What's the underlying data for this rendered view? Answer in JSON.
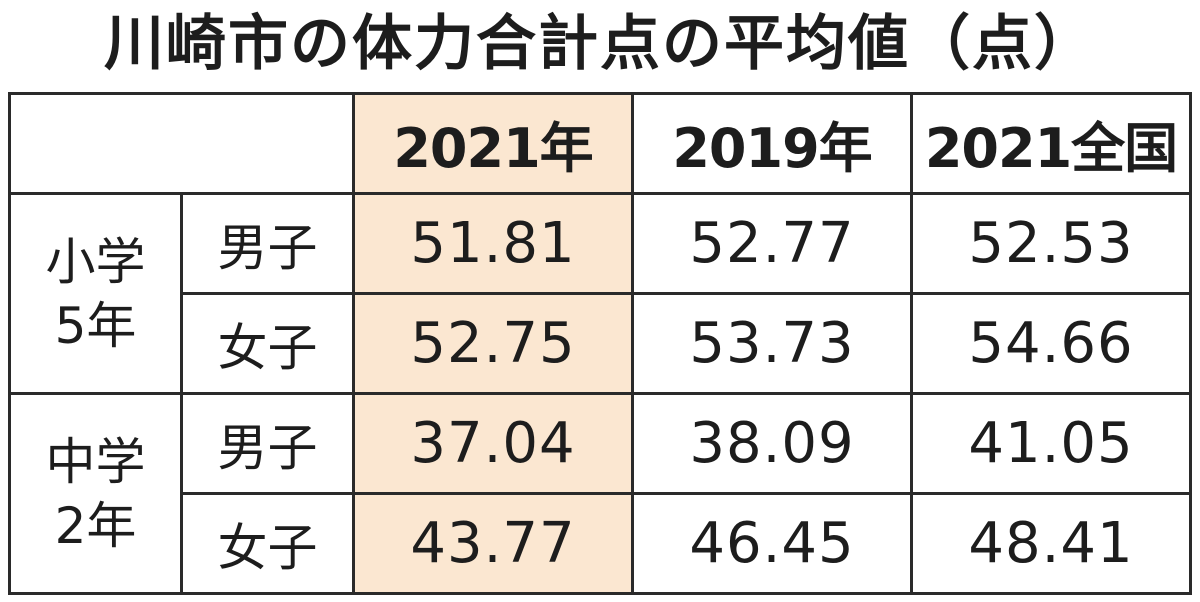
{
  "title": "川崎市の体力合計点の平均値（点）",
  "chart_data": {
    "type": "table",
    "title": "川崎市の体力合計点の平均値（点）",
    "columns": [
      "2021年",
      "2019年",
      "2021全国"
    ],
    "highlight_column": "2021年",
    "highlight_color": "#fbe7d1",
    "groups": [
      {
        "label_line1": "小学",
        "label_line2": "5年",
        "rows": [
          {
            "sex": "男子",
            "values": [
              "51.81",
              "52.77",
              "52.53"
            ]
          },
          {
            "sex": "女子",
            "values": [
              "52.75",
              "53.73",
              "54.66"
            ]
          }
        ]
      },
      {
        "label_line1": "中学",
        "label_line2": "2年",
        "rows": [
          {
            "sex": "男子",
            "values": [
              "37.04",
              "38.09",
              "41.05"
            ]
          },
          {
            "sex": "女子",
            "values": [
              "43.77",
              "46.45",
              "48.41"
            ]
          }
        ]
      }
    ]
  }
}
